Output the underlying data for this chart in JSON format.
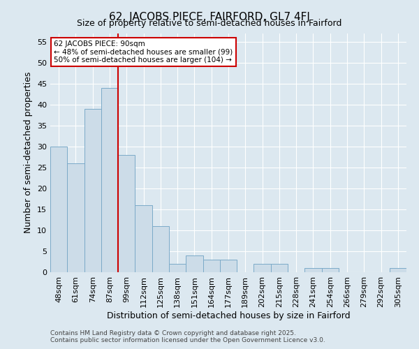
{
  "title": "62, JACOBS PIECE, FAIRFORD, GL7 4FJ",
  "subtitle": "Size of property relative to semi-detached houses in Fairford",
  "xlabel": "Distribution of semi-detached houses by size in Fairford",
  "ylabel": "Number of semi-detached properties",
  "bar_labels": [
    "48sqm",
    "61sqm",
    "74sqm",
    "87sqm",
    "99sqm",
    "112sqm",
    "125sqm",
    "138sqm",
    "151sqm",
    "164sqm",
    "177sqm",
    "189sqm",
    "202sqm",
    "215sqm",
    "228sqm",
    "241sqm",
    "254sqm",
    "266sqm",
    "279sqm",
    "292sqm",
    "305sqm"
  ],
  "bar_values": [
    30,
    26,
    39,
    44,
    28,
    16,
    11,
    2,
    4,
    3,
    3,
    0,
    2,
    2,
    0,
    1,
    1,
    0,
    0,
    0,
    1
  ],
  "bar_color": "#ccdce8",
  "bar_edge_color": "#7baac8",
  "vline_x_index": 3,
  "vline_color": "#cc0000",
  "ylim": [
    0,
    57
  ],
  "yticks": [
    0,
    5,
    10,
    15,
    20,
    25,
    30,
    35,
    40,
    45,
    50,
    55
  ],
  "annotation_title": "62 JACOBS PIECE: 90sqm",
  "annotation_line1": "← 48% of semi-detached houses are smaller (99)",
  "annotation_line2": "50% of semi-detached houses are larger (104) →",
  "annotation_box_facecolor": "#ffffff",
  "annotation_box_edgecolor": "#cc0000",
  "bg_color": "#dce8f0",
  "plot_bg_color": "#dce8f0",
  "grid_color": "#ffffff",
  "footer1": "Contains HM Land Registry data © Crown copyright and database right 2025.",
  "footer2": "Contains public sector information licensed under the Open Government Licence v3.0.",
  "title_fontsize": 11,
  "subtitle_fontsize": 9,
  "axis_label_fontsize": 9,
  "tick_fontsize": 8,
  "annotation_fontsize": 7.5,
  "footer_fontsize": 6.5
}
